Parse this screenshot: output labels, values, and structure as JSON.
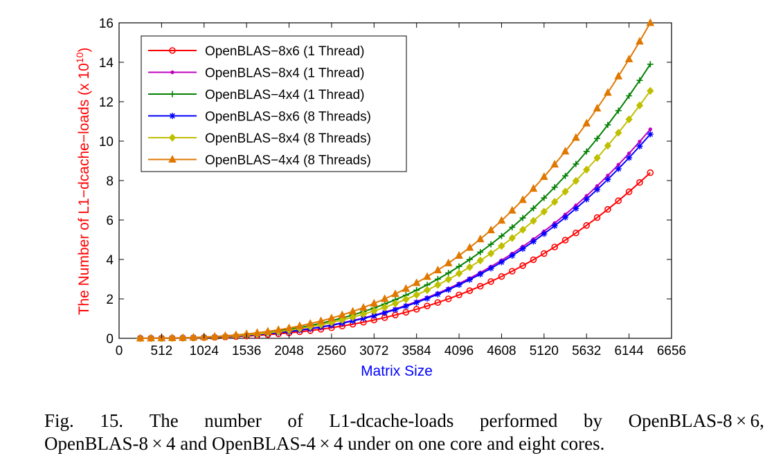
{
  "chart_data": {
    "type": "line",
    "xlabel": "Matrix Size",
    "ylabel": "The Number of L1−dcache−loads (x 10",
    "ylabel_exponent": "10",
    "ylabel_close": ")",
    "xlim": [
      0,
      6656
    ],
    "ylim": [
      0,
      16
    ],
    "xticks": [
      "0",
      "512",
      "1024",
      "1536",
      "2048",
      "2560",
      "3072",
      "3584",
      "4096",
      "4608",
      "5120",
      "5632",
      "6144",
      "6656"
    ],
    "yticks": [
      "0",
      "2",
      "4",
      "6",
      "8",
      "10",
      "12",
      "14",
      "16"
    ],
    "xlabel_color": "#0000ff",
    "ylabel_color": "#ff0000",
    "grid": false,
    "legend_position": "top-left",
    "x": [
      256,
      384,
      512,
      640,
      768,
      896,
      1024,
      1152,
      1280,
      1408,
      1536,
      1664,
      1792,
      1920,
      2048,
      2176,
      2304,
      2432,
      2560,
      2688,
      2816,
      2944,
      3072,
      3200,
      3328,
      3456,
      3584,
      3712,
      3840,
      3968,
      4096,
      4224,
      4352,
      4480,
      4608,
      4736,
      4864,
      4992,
      5120,
      5248,
      5376,
      5504,
      5632,
      5760,
      5888,
      6016,
      6144,
      6272,
      6400
    ],
    "series": [
      {
        "name": "OpenBLAS−8x6 (1 Thread)",
        "color": "#ff0000",
        "marker": "circle",
        "scale": 8.4
      },
      {
        "name": "OpenBLAS−8x4 (1 Thread)",
        "color": "#bf00bf",
        "marker": "dot",
        "scale": 10.6
      },
      {
        "name": "OpenBLAS−4x4 (1 Thread)",
        "color": "#008000",
        "marker": "plus",
        "scale": 13.9
      },
      {
        "name": "OpenBLAS−8x6 (8 Threads)",
        "color": "#0000ff",
        "marker": "star",
        "scale": 10.35
      },
      {
        "name": "OpenBLAS−8x4 (8 Threads)",
        "color": "#bfbf00",
        "marker": "diamond",
        "scale": 12.55
      },
      {
        "name": "OpenBLAS−4x4 (8 Threads)",
        "color": "#e07800",
        "marker": "triangle",
        "scale": 16.0
      }
    ],
    "series_shape": "cubic"
  },
  "caption": {
    "line1": [
      "Fig.",
      "15.",
      "The",
      "number",
      "of",
      "L1-dcache-loads",
      "performed",
      "by",
      "OpenBLAS-8 × 6,"
    ],
    "line2": "OpenBLAS-8 × 4 and OpenBLAS-4 × 4 under on one core and eight cores."
  }
}
